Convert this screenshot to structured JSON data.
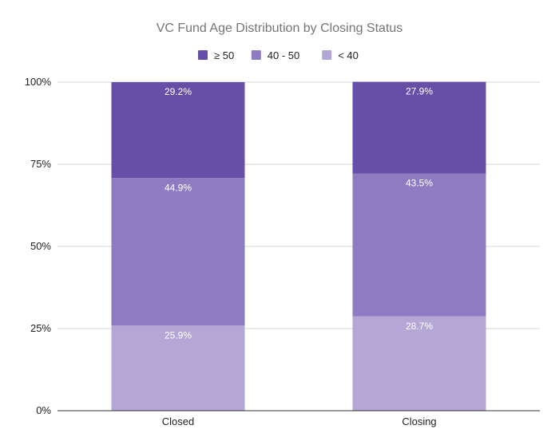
{
  "chart_data": {
    "type": "bar",
    "stacked": true,
    "title": "VC Fund Age Distribution by Closing Status",
    "categories": [
      "Closed",
      "Closing"
    ],
    "series": [
      {
        "name": "< 40",
        "values": [
          25.9,
          28.7
        ],
        "labels": [
          "25.9%",
          "28.7%"
        ],
        "color": "#b4a7d6"
      },
      {
        "name": "40 - 50",
        "values": [
          44.9,
          43.5
        ],
        "labels": [
          "44.9%",
          "43.5%"
        ],
        "color": "#8e7cc3"
      },
      {
        "name": "≥ 50",
        "values": [
          29.2,
          27.9
        ],
        "labels": [
          "29.2%",
          "27.9%"
        ],
        "color": "#674ea7"
      }
    ],
    "legend_order": [
      "≥ 50",
      "40 - 50",
      "< 40"
    ],
    "legend_position": "top",
    "y_ticks": [
      "0%",
      "25%",
      "50%",
      "75%",
      "100%"
    ],
    "ylim": [
      0,
      100
    ],
    "xlabel": "",
    "ylabel": "",
    "grid": true
  }
}
